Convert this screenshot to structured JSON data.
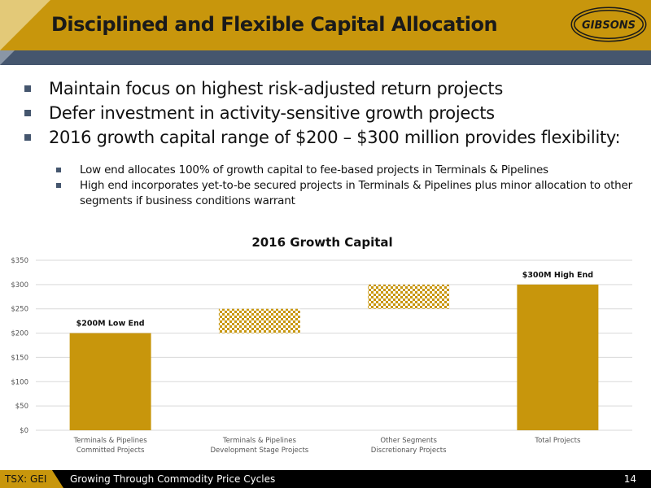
{
  "header": {
    "title": "Disciplined and Flexible Capital Allocation",
    "logo_text": "GIBSONS"
  },
  "bullets": [
    "Maintain focus on highest risk-adjusted return projects",
    "Defer investment in activity-sensitive growth projects",
    "2016 growth capital range of $200 – $300 million provides flexibility:"
  ],
  "sub_bullets": [
    "Low end allocates 100% of growth capital to fee-based projects in Terminals & Pipelines",
    "High end incorporates yet-to-be secured projects in Terminals & Pipelines plus minor allocation to other segments if business conditions warrant"
  ],
  "chart_data": {
    "type": "bar",
    "title": "2016 Growth Capital",
    "categories": [
      [
        "Terminals & Pipelines",
        "Committed Projects"
      ],
      [
        "Terminals & Pipelines",
        "Development Stage Projects"
      ],
      [
        "Other Segments",
        "Discretionary Projects"
      ],
      [
        "Total Projects"
      ]
    ],
    "bars": [
      {
        "base": 0,
        "top": 200,
        "style": "solid",
        "label": "$200M Low End"
      },
      {
        "base": 200,
        "top": 250,
        "style": "checker",
        "label": ""
      },
      {
        "base": 250,
        "top": 300,
        "style": "checker",
        "label": ""
      },
      {
        "base": 0,
        "top": 300,
        "style": "solid",
        "label": "$300M High End"
      }
    ],
    "yticks": [
      "$0",
      "$50",
      "$100",
      "$150",
      "$200",
      "$250",
      "$300",
      "$350"
    ],
    "ylim": [
      0,
      350
    ],
    "grid": true,
    "bar_color": "#c8960c"
  },
  "footer": {
    "ticker": "TSX: GEI",
    "tagline": "Growing Through Commodity Price Cycles",
    "page": "14"
  },
  "colors": {
    "gold": "#c8960c",
    "slate": "#45566e",
    "black": "#000000"
  }
}
